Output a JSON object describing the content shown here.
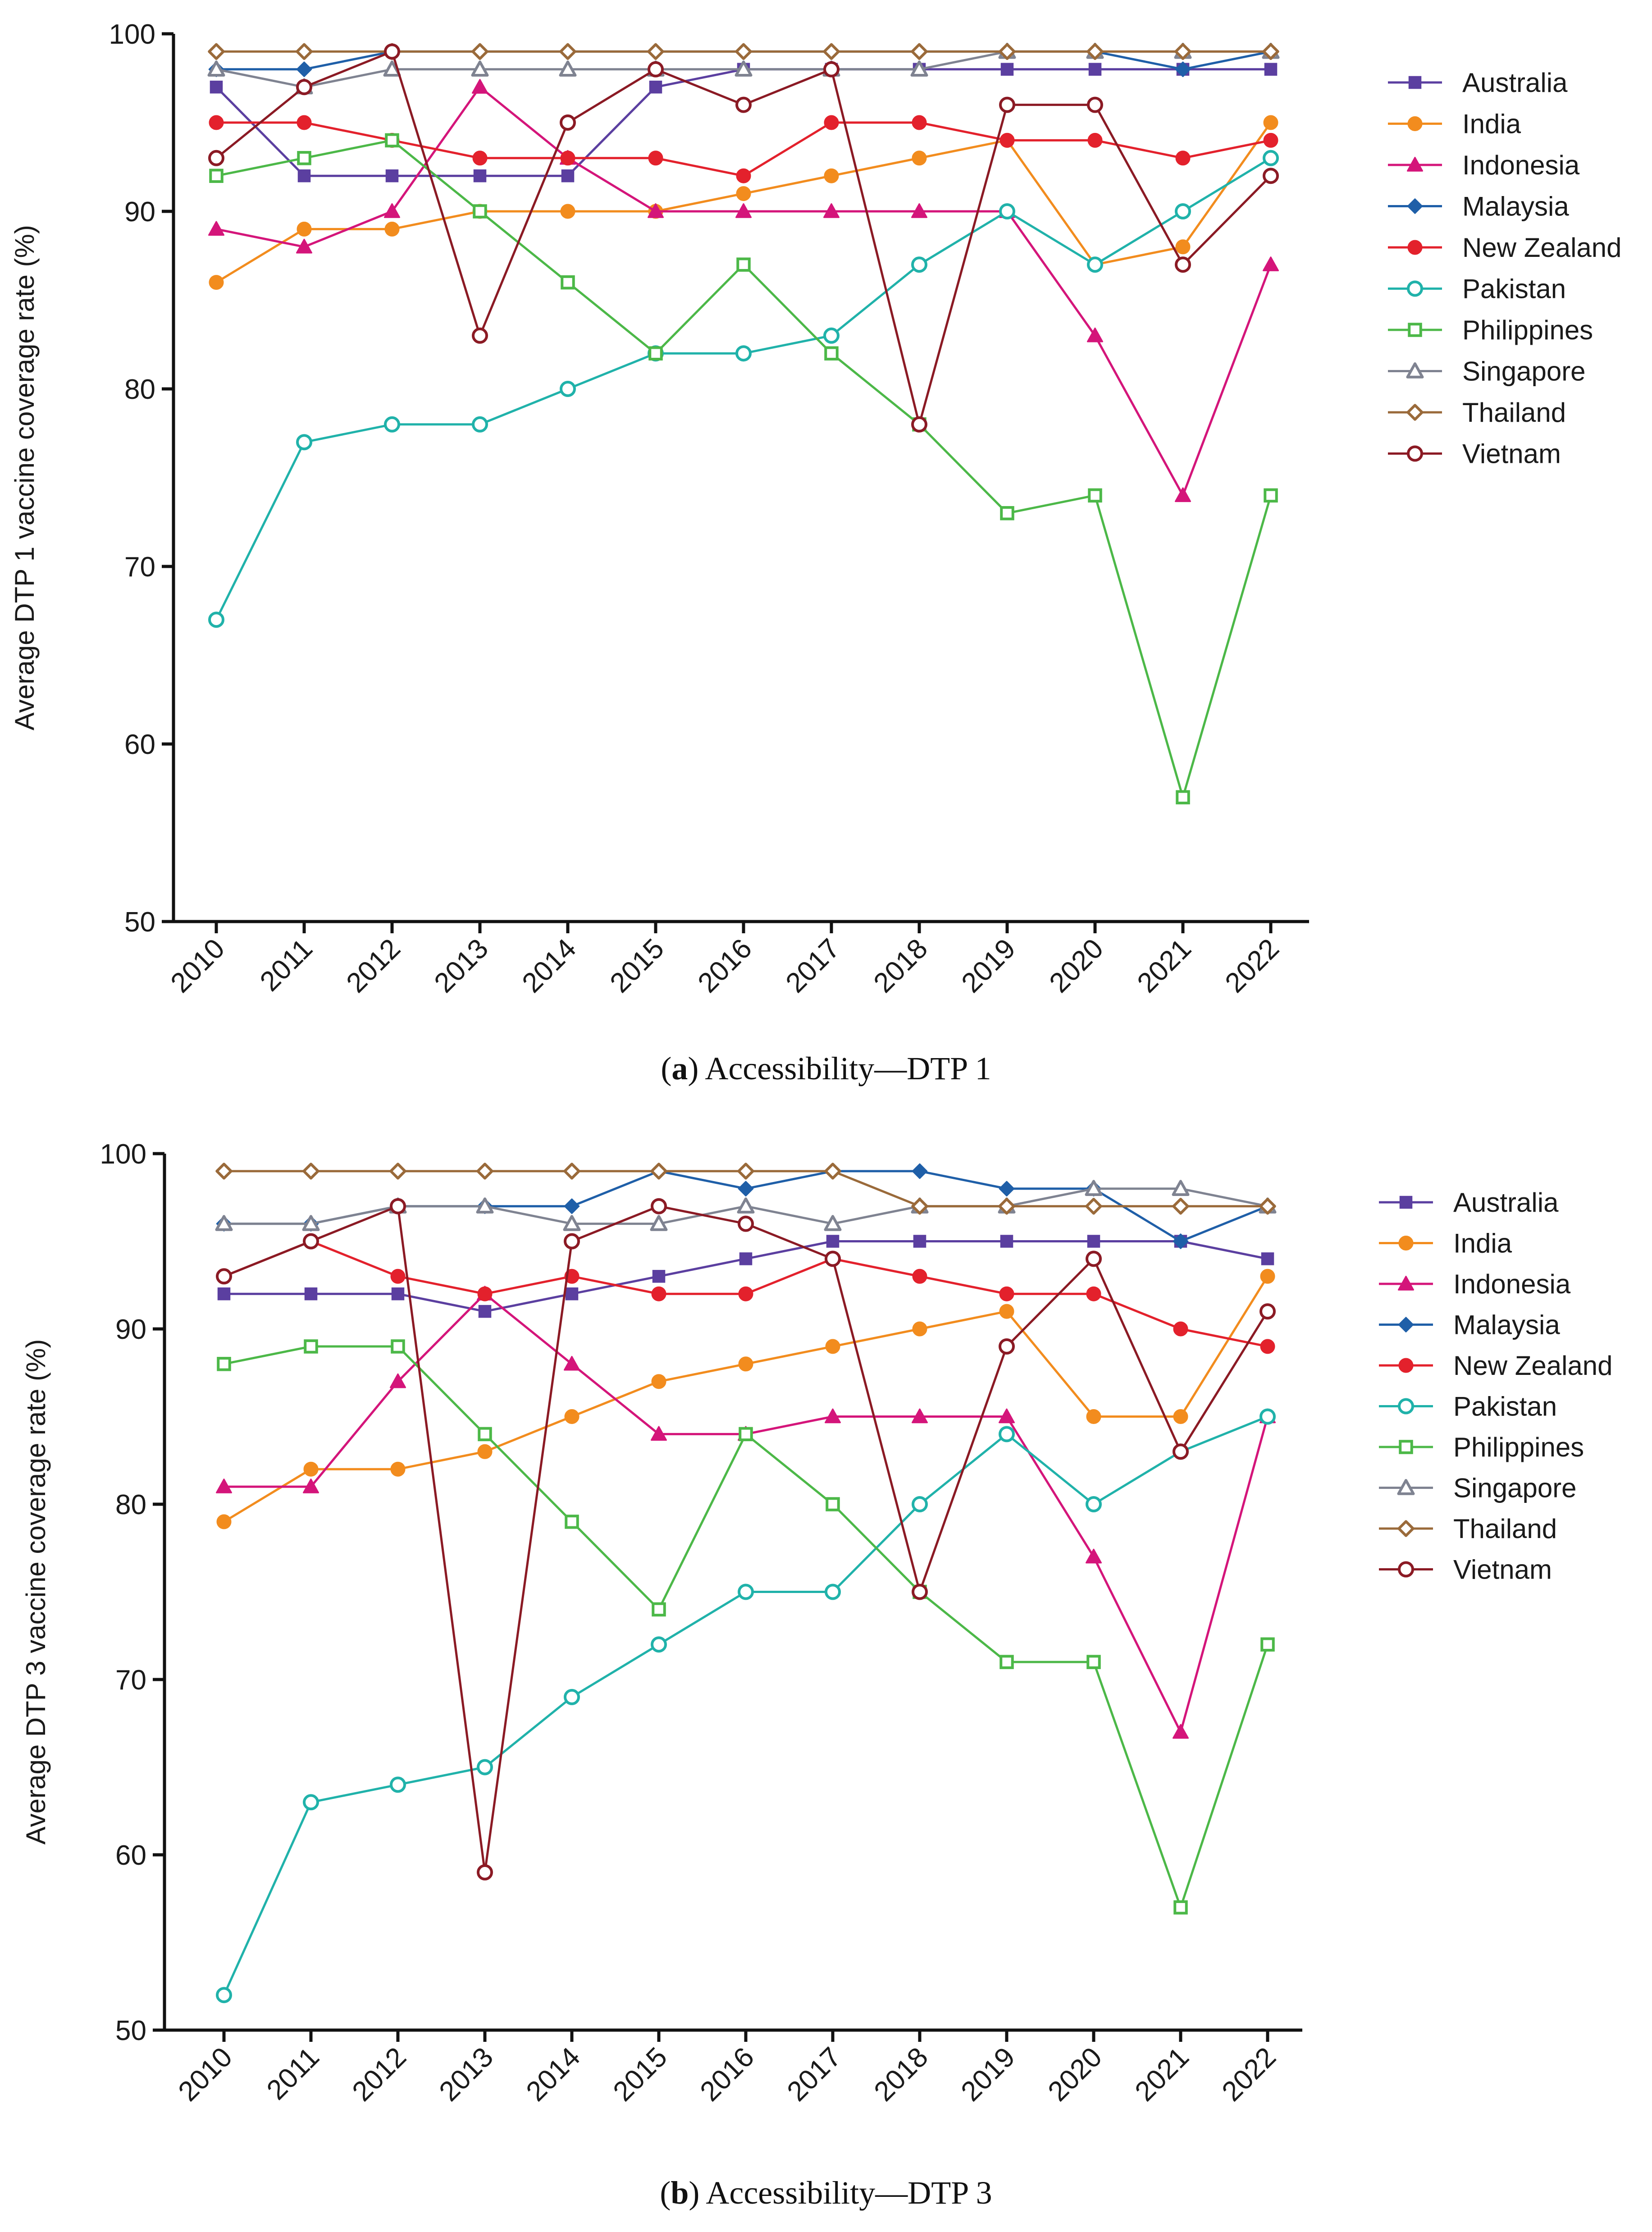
{
  "chart_data": [
    {
      "id": "a",
      "type": "line",
      "caption_letter": "a",
      "caption_text": "Accessibility—DTP 1",
      "ylabel": "Average DTP 1 vaccine coverage rate (%)",
      "xlabel": "",
      "ylim": [
        50,
        100
      ],
      "yticks": [
        50,
        60,
        70,
        80,
        90,
        100
      ],
      "categories": [
        "2010",
        "2011",
        "2012",
        "2013",
        "2014",
        "2015",
        "2016",
        "2017",
        "2018",
        "2019",
        "2020",
        "2021",
        "2022"
      ],
      "series": [
        {
          "name": "Australia",
          "color": "#5b3fa0",
          "marker": "square-filled",
          "values": [
            97,
            92,
            92,
            92,
            92,
            97,
            98,
            98,
            98,
            98,
            98,
            98,
            98
          ]
        },
        {
          "name": "India",
          "color": "#f28c1e",
          "marker": "circle-filled",
          "values": [
            86,
            89,
            89,
            90,
            90,
            90,
            91,
            92,
            93,
            94,
            87,
            88,
            95
          ]
        },
        {
          "name": "Indonesia",
          "color": "#d4157a",
          "marker": "triangle-filled",
          "values": [
            89,
            88,
            90,
            97,
            93,
            90,
            90,
            90,
            90,
            90,
            83,
            74,
            87
          ]
        },
        {
          "name": "Malaysia",
          "color": "#1f5fa8",
          "marker": "diamond-filled",
          "values": [
            98,
            98,
            99,
            99,
            99,
            99,
            99,
            99,
            99,
            99,
            99,
            98,
            99
          ]
        },
        {
          "name": "New Zealand",
          "color": "#e3212c",
          "marker": "circle-filled",
          "values": [
            95,
            95,
            94,
            93,
            93,
            93,
            92,
            95,
            95,
            94,
            94,
            93,
            94
          ]
        },
        {
          "name": "Pakistan",
          "color": "#20b2aa",
          "marker": "circle-open",
          "values": [
            67,
            77,
            78,
            78,
            80,
            82,
            82,
            83,
            87,
            90,
            87,
            90,
            93
          ]
        },
        {
          "name": "Philippines",
          "color": "#4cb848",
          "marker": "square-open",
          "values": [
            92,
            93,
            94,
            90,
            86,
            82,
            87,
            82,
            78,
            73,
            74,
            57,
            74
          ]
        },
        {
          "name": "Singapore",
          "color": "#7f8391",
          "marker": "triangle-open",
          "values": [
            98,
            97,
            98,
            98,
            98,
            98,
            98,
            98,
            98,
            99,
            99,
            99,
            99
          ]
        },
        {
          "name": "Thailand",
          "color": "#9a6a3a",
          "marker": "diamond-open",
          "values": [
            99,
            99,
            99,
            99,
            99,
            99,
            99,
            99,
            99,
            99,
            99,
            99,
            99
          ]
        },
        {
          "name": "Vietnam",
          "color": "#8b1a24",
          "marker": "circle-open",
          "values": [
            93,
            97,
            99,
            83,
            95,
            98,
            96,
            98,
            78,
            96,
            96,
            87,
            92
          ]
        }
      ]
    },
    {
      "id": "b",
      "type": "line",
      "caption_letter": "b",
      "caption_text": "Accessibility—DTP 3",
      "ylabel": "Average DTP 3 vaccine coverage rate (%)",
      "xlabel": "",
      "ylim": [
        50,
        100
      ],
      "yticks": [
        50,
        60,
        70,
        80,
        90,
        100
      ],
      "categories": [
        "2010",
        "2011",
        "2012",
        "2013",
        "2014",
        "2015",
        "2016",
        "2017",
        "2018",
        "2019",
        "2020",
        "2021",
        "2022"
      ],
      "series": [
        {
          "name": "Australia",
          "color": "#5b3fa0",
          "marker": "square-filled",
          "values": [
            92,
            92,
            92,
            91,
            92,
            93,
            94,
            95,
            95,
            95,
            95,
            95,
            94
          ]
        },
        {
          "name": "India",
          "color": "#f28c1e",
          "marker": "circle-filled",
          "values": [
            79,
            82,
            82,
            83,
            85,
            87,
            88,
            89,
            90,
            91,
            85,
            85,
            93
          ]
        },
        {
          "name": "Indonesia",
          "color": "#d4157a",
          "marker": "triangle-filled",
          "values": [
            81,
            81,
            87,
            92,
            88,
            84,
            84,
            85,
            85,
            85,
            77,
            67,
            85
          ]
        },
        {
          "name": "Malaysia",
          "color": "#1f5fa8",
          "marker": "diamond-filled",
          "values": [
            96,
            96,
            97,
            97,
            97,
            99,
            98,
            99,
            99,
            98,
            98,
            95,
            97
          ]
        },
        {
          "name": "New Zealand",
          "color": "#e3212c",
          "marker": "circle-filled",
          "values": [
            93,
            95,
            93,
            92,
            93,
            92,
            92,
            94,
            93,
            92,
            92,
            90,
            89
          ]
        },
        {
          "name": "Pakistan",
          "color": "#20b2aa",
          "marker": "circle-open",
          "values": [
            52,
            63,
            64,
            65,
            69,
            72,
            75,
            75,
            80,
            84,
            80,
            83,
            85
          ]
        },
        {
          "name": "Philippines",
          "color": "#4cb848",
          "marker": "square-open",
          "values": [
            88,
            89,
            89,
            84,
            79,
            74,
            84,
            80,
            75,
            71,
            71,
            57,
            72
          ]
        },
        {
          "name": "Singapore",
          "color": "#7f8391",
          "marker": "triangle-open",
          "values": [
            96,
            96,
            97,
            97,
            96,
            96,
            97,
            96,
            97,
            97,
            98,
            98,
            97
          ]
        },
        {
          "name": "Thailand",
          "color": "#9a6a3a",
          "marker": "diamond-open",
          "values": [
            99,
            99,
            99,
            99,
            99,
            99,
            99,
            99,
            97,
            97,
            97,
            97,
            97
          ]
        },
        {
          "name": "Vietnam",
          "color": "#8b1a24",
          "marker": "circle-open",
          "values": [
            93,
            95,
            97,
            59,
            95,
            97,
            96,
            94,
            75,
            89,
            94,
            83,
            91
          ]
        }
      ]
    }
  ]
}
